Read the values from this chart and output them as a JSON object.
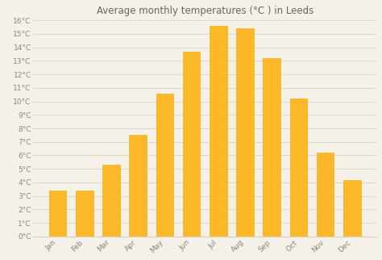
{
  "title": "Average monthly temperatures (°C ) in Leeds",
  "months": [
    "Jan",
    "Feb",
    "Mar",
    "Apr",
    "May",
    "Jun",
    "Jul",
    "Aug",
    "Sep",
    "Oct",
    "Nov",
    "Dec"
  ],
  "values": [
    3.4,
    3.4,
    5.3,
    7.5,
    10.6,
    13.7,
    15.6,
    15.4,
    13.2,
    10.2,
    6.2,
    4.2
  ],
  "bar_color": "#FDB827",
  "bar_edge_color": "#E8A800",
  "background_color": "#F5F0E8",
  "plot_bg_color": "#F5F0E8",
  "grid_color": "#D8D0C0",
  "ylim": [
    0,
    16
  ],
  "ytick_step": 1,
  "title_fontsize": 8.5,
  "tick_fontsize": 6.5,
  "title_color": "#666666",
  "tick_color": "#888880",
  "bar_width": 0.65
}
